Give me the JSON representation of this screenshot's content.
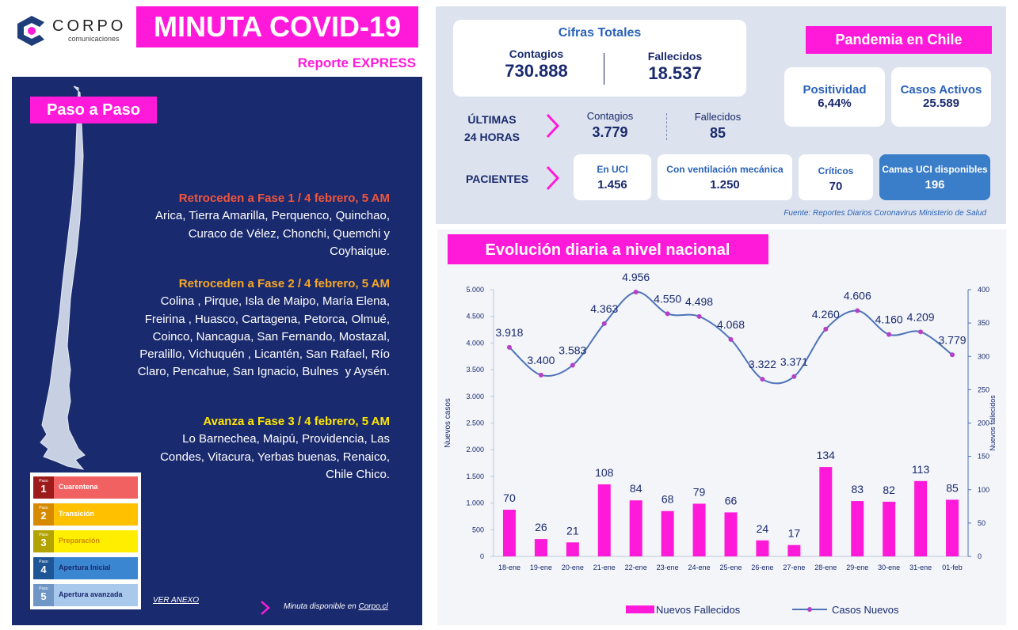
{
  "header": {
    "logo": "CORPO",
    "logo_sub": "comunicaciones",
    "title": "MINUTA COVID-19",
    "subtitle": "Reporte EXPRESS"
  },
  "paso_a_paso": {
    "title": "Paso a Paso",
    "sections": [
      {
        "heading": "Retroceden a Fase 1 / 4 febrero, 5 AM",
        "lines": [
          "Arica, Tierra Amarilla, Perquenco, Quinchao,",
          "Curaco de Vélez, Chonchi, Quemchi y",
          "Coyhaique."
        ]
      },
      {
        "heading": "Retroceden a Fase 2 / 4 febrero, 5 AM",
        "lines": [
          "Colina , Pirque, Isla de Maipo, María Elena,",
          "Freirina , Huasco, Cartagena, Petorca, Olmué,",
          "Coinco, Nancagua, San Fernando, Mostazal,",
          "Peralillo, Vichuquén , Licantén, San Rafael, Río",
          "Claro, Pencahue, San Ignacio, Bulnes  y Aysén."
        ]
      },
      {
        "heading": "Avanza a Fase 3 / 4 febrero, 5 AM",
        "lines": [
          "Lo Barnechea, Maipú, Providencia, Las",
          "Condes, Vitacura, Yerbas buenas, Renaico,",
          "Chile Chico."
        ]
      }
    ],
    "legend": [
      {
        "paso": "Paso",
        "number": "1",
        "label": "Cuarentena"
      },
      {
        "paso": "Paso",
        "number": "2",
        "label": "Transición"
      },
      {
        "paso": "Paso",
        "number": "3",
        "label": "Preparación"
      },
      {
        "paso": "Paso",
        "number": "4",
        "label": "Apertura Inicial"
      },
      {
        "paso": "Paso",
        "number": "5",
        "label": "Apertura avanzada"
      }
    ],
    "link": "VER ANEXO",
    "footer": "Minuta disponible en ",
    "footer_link": "Corpo.cl"
  },
  "cifras": {
    "title": "Cifras Totales",
    "contagios_label": "Contagios",
    "contagios": "730.888",
    "fallecidos_label": "Fallecidos",
    "fallecidos": "18.537"
  },
  "pandemia": {
    "title": "Pandemia en Chile",
    "positividad_label": "Positividad",
    "positividad": "6,44%",
    "activos_label": "Casos Activos",
    "activos": "25.589"
  },
  "ultimas": {
    "label_1": "ÚLTIMAS",
    "label_2": "24 HORAS",
    "contagios_label": "Contagios",
    "contagios": "3.779",
    "fallecidos_label": "Fallecidos",
    "fallecidos": "85"
  },
  "pacientes": {
    "label": "PACIENTES",
    "cards": [
      {
        "label": "En UCI",
        "value": "1.456"
      },
      {
        "label": "Con ventilación mecánica",
        "value": "1.250"
      },
      {
        "label": "Críticos",
        "value": "70"
      },
      {
        "label": "Camas UCI disponibles",
        "value": "196"
      }
    ]
  },
  "source": "Fuente: Reportes Diarios Coronavirus Ministerio de Salud",
  "chart_data": {
    "type": "combo",
    "title": "Evolución diaria a nivel nacional",
    "categories": [
      "18-ene",
      "19-ene",
      "20-ene",
      "21-ene",
      "22-ene",
      "23-ene",
      "24-ene",
      "25-ene",
      "26-ene",
      "27-ene",
      "28-ene",
      "29-ene",
      "30-ene",
      "31-ene",
      "01-feb"
    ],
    "series": [
      {
        "name": "Nuevos Fallecidos",
        "type": "bar",
        "axis": "y2",
        "color": "#ff1ad9",
        "values": [
          70,
          26,
          21,
          108,
          84,
          68,
          79,
          66,
          24,
          17,
          134,
          83,
          82,
          113,
          85
        ]
      },
      {
        "name": "Casos Nuevos",
        "type": "line",
        "color": "#4f73b8",
        "marker_color": "#b540c8",
        "values": [
          3918,
          3400,
          3583,
          4363,
          4956,
          4550,
          4498,
          4068,
          3322,
          3371,
          4260,
          4606,
          4160,
          4209,
          3779
        ],
        "value_labels": [
          "3.918",
          "3.400",
          "3.583",
          "4.363",
          "4.956",
          "4.550",
          "4.498",
          "4.068",
          "3.322",
          "3.371",
          "4.260",
          "4.606",
          "4.160",
          "4.209",
          "3.779"
        ]
      }
    ],
    "y_label": "Nuevos casos",
    "y2_label": "Nuevos fallecidos",
    "ylim": [
      0,
      5000
    ],
    "yticks": [
      0,
      {
        "value": 500,
        "label": "500"
      },
      {
        "value": 1000,
        "label": "1.000"
      },
      {
        "value": 1500,
        "label": "1.500"
      },
      {
        "value": 2000,
        "label": "2.000"
      },
      {
        "value": 2500,
        "label": "2.500"
      },
      {
        "value": 3000,
        "label": "3.000"
      },
      {
        "value": 3500,
        "label": "3.500"
      },
      {
        "value": 4000,
        "label": "4.000"
      },
      {
        "value": 4500,
        "label": "4.500"
      },
      {
        "value": 5000,
        "label": "5.000"
      }
    ],
    "y2lim": [
      0,
      400
    ],
    "y2ticks": [
      0,
      50,
      100,
      150,
      200,
      250,
      300,
      350,
      400
    ],
    "grid": false,
    "legend": "bottom"
  }
}
